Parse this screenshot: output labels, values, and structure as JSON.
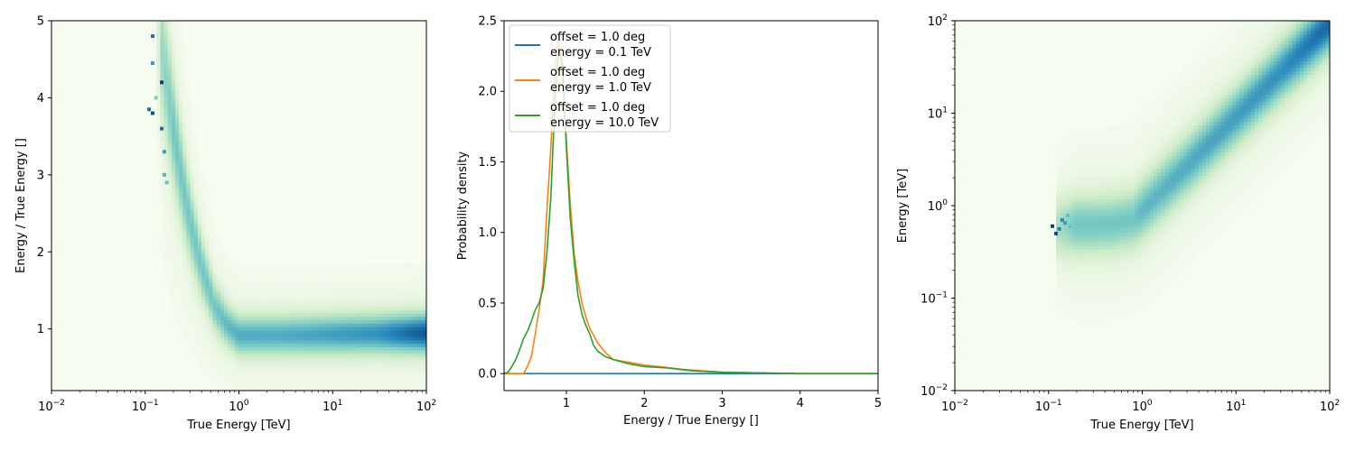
{
  "chart_data": [
    {
      "type": "heatmap",
      "title": "",
      "xlabel": "True Energy [TeV]",
      "ylabel": "Energy / True Energy []",
      "xscale": "log",
      "xlim": [
        0.01,
        100
      ],
      "ylim": [
        0.2,
        5
      ],
      "x_ticks": [
        {
          "value": 0.01,
          "base": "10",
          "exp": "−2"
        },
        {
          "value": 0.1,
          "base": "10",
          "exp": "−1"
        },
        {
          "value": 1,
          "base": "10",
          "exp": "0"
        },
        {
          "value": 10,
          "base": "10",
          "exp": "1"
        },
        {
          "value": 100,
          "base": "10",
          "exp": "2"
        }
      ],
      "y_ticks": [
        "1",
        "2",
        "3",
        "4",
        "5"
      ],
      "colormap": [
        "#f7fcf0",
        "#ccebc5",
        "#7bccc4",
        "#2b8cbe",
        "#084081"
      ],
      "ridge": [
        {
          "x": 0.13,
          "y": 5.0,
          "w": 0.0
        },
        {
          "x": 0.15,
          "y": 4.6,
          "w": 0.35
        },
        {
          "x": 0.2,
          "y": 3.6,
          "w": 0.45
        },
        {
          "x": 0.25,
          "y": 2.9,
          "w": 0.45
        },
        {
          "x": 0.3,
          "y": 2.4,
          "w": 0.45
        },
        {
          "x": 0.4,
          "y": 1.8,
          "w": 0.45
        },
        {
          "x": 0.55,
          "y": 1.3,
          "w": 0.45
        },
        {
          "x": 0.75,
          "y": 1.05,
          "w": 0.5
        },
        {
          "x": 1.0,
          "y": 0.92,
          "w": 0.55
        },
        {
          "x": 3.0,
          "y": 0.92,
          "w": 0.55
        },
        {
          "x": 10.0,
          "y": 0.93,
          "w": 0.6
        },
        {
          "x": 30.0,
          "y": 0.94,
          "w": 0.65
        },
        {
          "x": 100.0,
          "y": 0.95,
          "w": 0.85
        }
      ],
      "hot_pixels": [
        {
          "x": 0.12,
          "y": 4.8,
          "w": 0.85
        },
        {
          "x": 0.12,
          "y": 4.45,
          "w": 0.7
        },
        {
          "x": 0.11,
          "y": 3.85,
          "w": 0.85
        },
        {
          "x": 0.12,
          "y": 3.8,
          "w": 0.95
        },
        {
          "x": 0.15,
          "y": 4.2,
          "w": 1.0
        },
        {
          "x": 0.15,
          "y": 3.6,
          "w": 0.85
        },
        {
          "x": 0.16,
          "y": 3.3,
          "w": 0.7
        },
        {
          "x": 0.16,
          "y": 3.0,
          "w": 0.6
        },
        {
          "x": 0.17,
          "y": 2.9,
          "w": 0.55
        },
        {
          "x": 0.13,
          "y": 4.0,
          "w": 0.5
        }
      ]
    },
    {
      "type": "line",
      "title": "",
      "xlabel": "Energy / True Energy []",
      "ylabel": "Probability density",
      "xlim": [
        0.2,
        5
      ],
      "ylim": [
        -0.12,
        2.5
      ],
      "x_ticks": [
        "1",
        "2",
        "3",
        "4",
        "5"
      ],
      "y_ticks": [
        "0.0",
        "0.5",
        "1.0",
        "1.5",
        "2.0",
        "2.5"
      ],
      "legend_position": "upper-left",
      "series": [
        {
          "name": "offset = 1.0 deg\nenergy = 0.1 TeV",
          "label_line1": "offset = 1.0 deg",
          "label_line2": "energy = 0.1 TeV",
          "color": "#1f77b4",
          "x": [
            0.2,
            5.0
          ],
          "y": [
            0.0,
            0.0
          ]
        },
        {
          "name": "offset = 1.0 deg\nenergy = 1.0 TeV",
          "label_line1": "offset = 1.0 deg",
          "label_line2": "energy = 1.0 TeV",
          "color": "#ff7f0e",
          "x": [
            0.2,
            0.45,
            0.5,
            0.55,
            0.6,
            0.65,
            0.7,
            0.75,
            0.8,
            0.85,
            0.9,
            0.95,
            1.0,
            1.05,
            1.1,
            1.15,
            1.2,
            1.25,
            1.3,
            1.4,
            1.5,
            1.6,
            1.8,
            2.0,
            2.2,
            2.5,
            3.0,
            3.5,
            4.0,
            5.0
          ],
          "y": [
            0.0,
            0.0,
            0.05,
            0.12,
            0.28,
            0.45,
            0.65,
            1.15,
            1.6,
            2.15,
            2.4,
            2.1,
            1.65,
            1.2,
            0.85,
            0.65,
            0.5,
            0.4,
            0.32,
            0.22,
            0.15,
            0.1,
            0.08,
            0.06,
            0.05,
            0.03,
            0.01,
            0.005,
            0.0,
            0.0
          ]
        },
        {
          "name": "offset = 1.0 deg\nenergy = 10.0 TeV",
          "label_line1": "offset = 1.0 deg",
          "label_line2": "energy = 10.0 TeV",
          "color": "#2ca02c",
          "x": [
            0.2,
            0.25,
            0.3,
            0.35,
            0.4,
            0.45,
            0.5,
            0.55,
            0.6,
            0.65,
            0.7,
            0.75,
            0.8,
            0.85,
            0.9,
            0.95,
            1.0,
            1.05,
            1.1,
            1.15,
            1.2,
            1.25,
            1.3,
            1.35,
            1.4,
            1.5,
            1.6,
            1.8,
            2.0,
            2.3,
            2.6,
            3.0,
            3.5,
            4.0,
            5.0
          ],
          "y": [
            0.0,
            0.01,
            0.05,
            0.1,
            0.17,
            0.25,
            0.3,
            0.37,
            0.45,
            0.5,
            0.6,
            0.85,
            1.25,
            1.9,
            2.3,
            2.2,
            1.6,
            1.1,
            0.8,
            0.55,
            0.42,
            0.34,
            0.28,
            0.2,
            0.16,
            0.12,
            0.1,
            0.07,
            0.05,
            0.04,
            0.02,
            0.01,
            0.005,
            0.0,
            0.0
          ]
        }
      ]
    },
    {
      "type": "heatmap",
      "title": "",
      "xlabel": "True Energy [TeV]",
      "ylabel": "Energy [TeV]",
      "xscale": "log",
      "yscale": "log",
      "xlim": [
        0.01,
        100
      ],
      "ylim": [
        0.01,
        100
      ],
      "x_ticks": [
        {
          "value": 0.01,
          "base": "10",
          "exp": "−2"
        },
        {
          "value": 0.1,
          "base": "10",
          "exp": "−1"
        },
        {
          "value": 1,
          "base": "10",
          "exp": "0"
        },
        {
          "value": 10,
          "base": "10",
          "exp": "1"
        },
        {
          "value": 100,
          "base": "10",
          "exp": "2"
        }
      ],
      "y_ticks": [
        {
          "value": 0.01,
          "base": "10",
          "exp": "−2"
        },
        {
          "value": 0.1,
          "base": "10",
          "exp": "−1"
        },
        {
          "value": 1,
          "base": "10",
          "exp": "0"
        },
        {
          "value": 10,
          "base": "10",
          "exp": "1"
        },
        {
          "value": 100,
          "base": "10",
          "exp": "2"
        }
      ],
      "colormap": [
        "#f7fcf0",
        "#ccebc5",
        "#7bccc4",
        "#2b8cbe",
        "#084081"
      ],
      "ridge": [
        {
          "x": 0.12,
          "y": 0.58,
          "w": 0.3
        },
        {
          "x": 0.2,
          "y": 0.62,
          "w": 0.45
        },
        {
          "x": 0.3,
          "y": 0.62,
          "w": 0.45
        },
        {
          "x": 0.5,
          "y": 0.64,
          "w": 0.45
        },
        {
          "x": 0.8,
          "y": 0.72,
          "w": 0.45
        },
        {
          "x": 1.0,
          "y": 0.9,
          "w": 0.5
        },
        {
          "x": 3.0,
          "y": 2.7,
          "w": 0.55
        },
        {
          "x": 10.0,
          "y": 9.2,
          "w": 0.6
        },
        {
          "x": 30.0,
          "y": 28.0,
          "w": 0.65
        },
        {
          "x": 100.0,
          "y": 95.0,
          "w": 0.8
        }
      ],
      "hot_pixels": [
        {
          "x": 0.11,
          "y": 0.6,
          "w": 1.0
        },
        {
          "x": 0.12,
          "y": 0.5,
          "w": 0.95
        },
        {
          "x": 0.13,
          "y": 0.56,
          "w": 0.8
        },
        {
          "x": 0.14,
          "y": 0.7,
          "w": 0.75
        },
        {
          "x": 0.15,
          "y": 0.65,
          "w": 0.7
        },
        {
          "x": 0.16,
          "y": 0.78,
          "w": 0.55
        },
        {
          "x": 0.17,
          "y": 0.6,
          "w": 0.55
        },
        {
          "x": 0.19,
          "y": 0.72,
          "w": 0.5
        }
      ]
    }
  ]
}
